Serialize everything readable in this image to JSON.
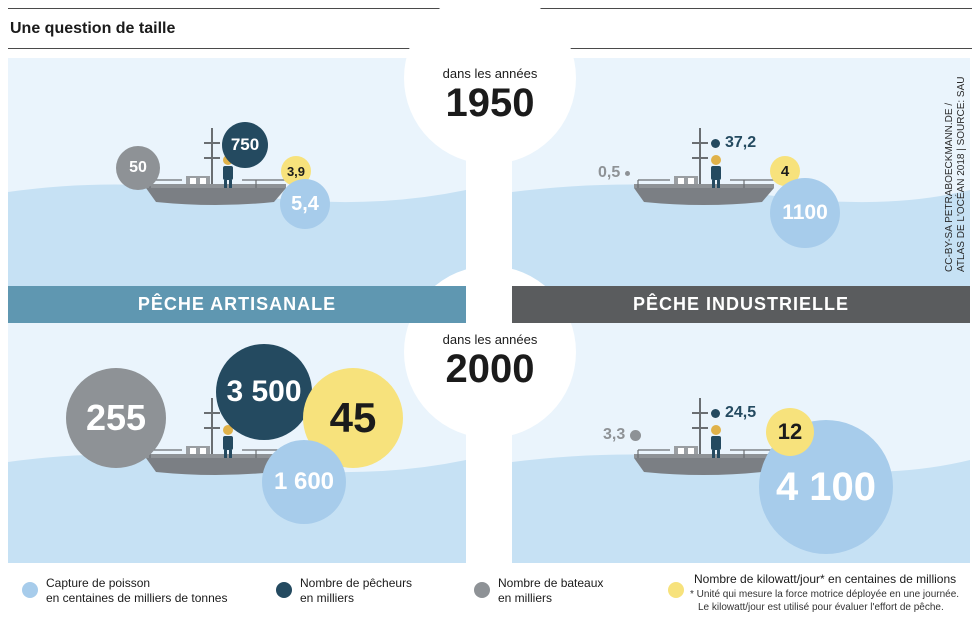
{
  "title": "Une question de taille",
  "bands": {
    "artisanal": "PÊCHE ARTISANALE",
    "industrial": "PÊCHE INDUSTRIELLE"
  },
  "eras": [
    {
      "sub": "dans les années",
      "year": "1950"
    },
    {
      "sub": "dans les années",
      "year": "2000"
    }
  ],
  "credit": [
    "CC-BY-SA PETRABOECKMANN.DE /",
    "ATLAS DE L'OCÉAN 2018 | SOURCE: SAU"
  ],
  "values": {
    "art_1950": {
      "boats": "50",
      "fishers": "750",
      "kw": "3,9",
      "catch": "5,4"
    },
    "ind_1950": {
      "boats": "0,5",
      "fishers": "37,2",
      "kw": "4",
      "catch": "1100"
    },
    "art_2000": {
      "boats": "255",
      "fishers": "3 500",
      "kw": "45",
      "catch": "1 600"
    },
    "ind_2000": {
      "boats": "3,3",
      "fishers": "24,5",
      "kw": "12",
      "catch": "4 100"
    }
  },
  "legend": {
    "catch": [
      "Capture de poisson",
      "en centaines de milliers de tonnes"
    ],
    "fishers": [
      "Nombre de pêcheurs",
      "en milliers"
    ],
    "boats": [
      "Nombre de bateaux",
      "en milliers"
    ],
    "kw": "Nombre de kilowatt/jour* en centaines de millions",
    "note": [
      "* Unité qui mesure la force motrice déployée en une journée.",
      "Le kilowatt/jour est utilisé pour évaluer l'effort de pêche."
    ]
  },
  "colors": {
    "catch": "#a7cceb",
    "fishers": "#244a60",
    "boats": "#8e9296",
    "kw": "#f7e27c",
    "band_artisanal": "#5f97b1",
    "band_industrial": "#5a5c5e",
    "sky": "#eaf4fc",
    "sea": "#c6e1f4"
  }
}
